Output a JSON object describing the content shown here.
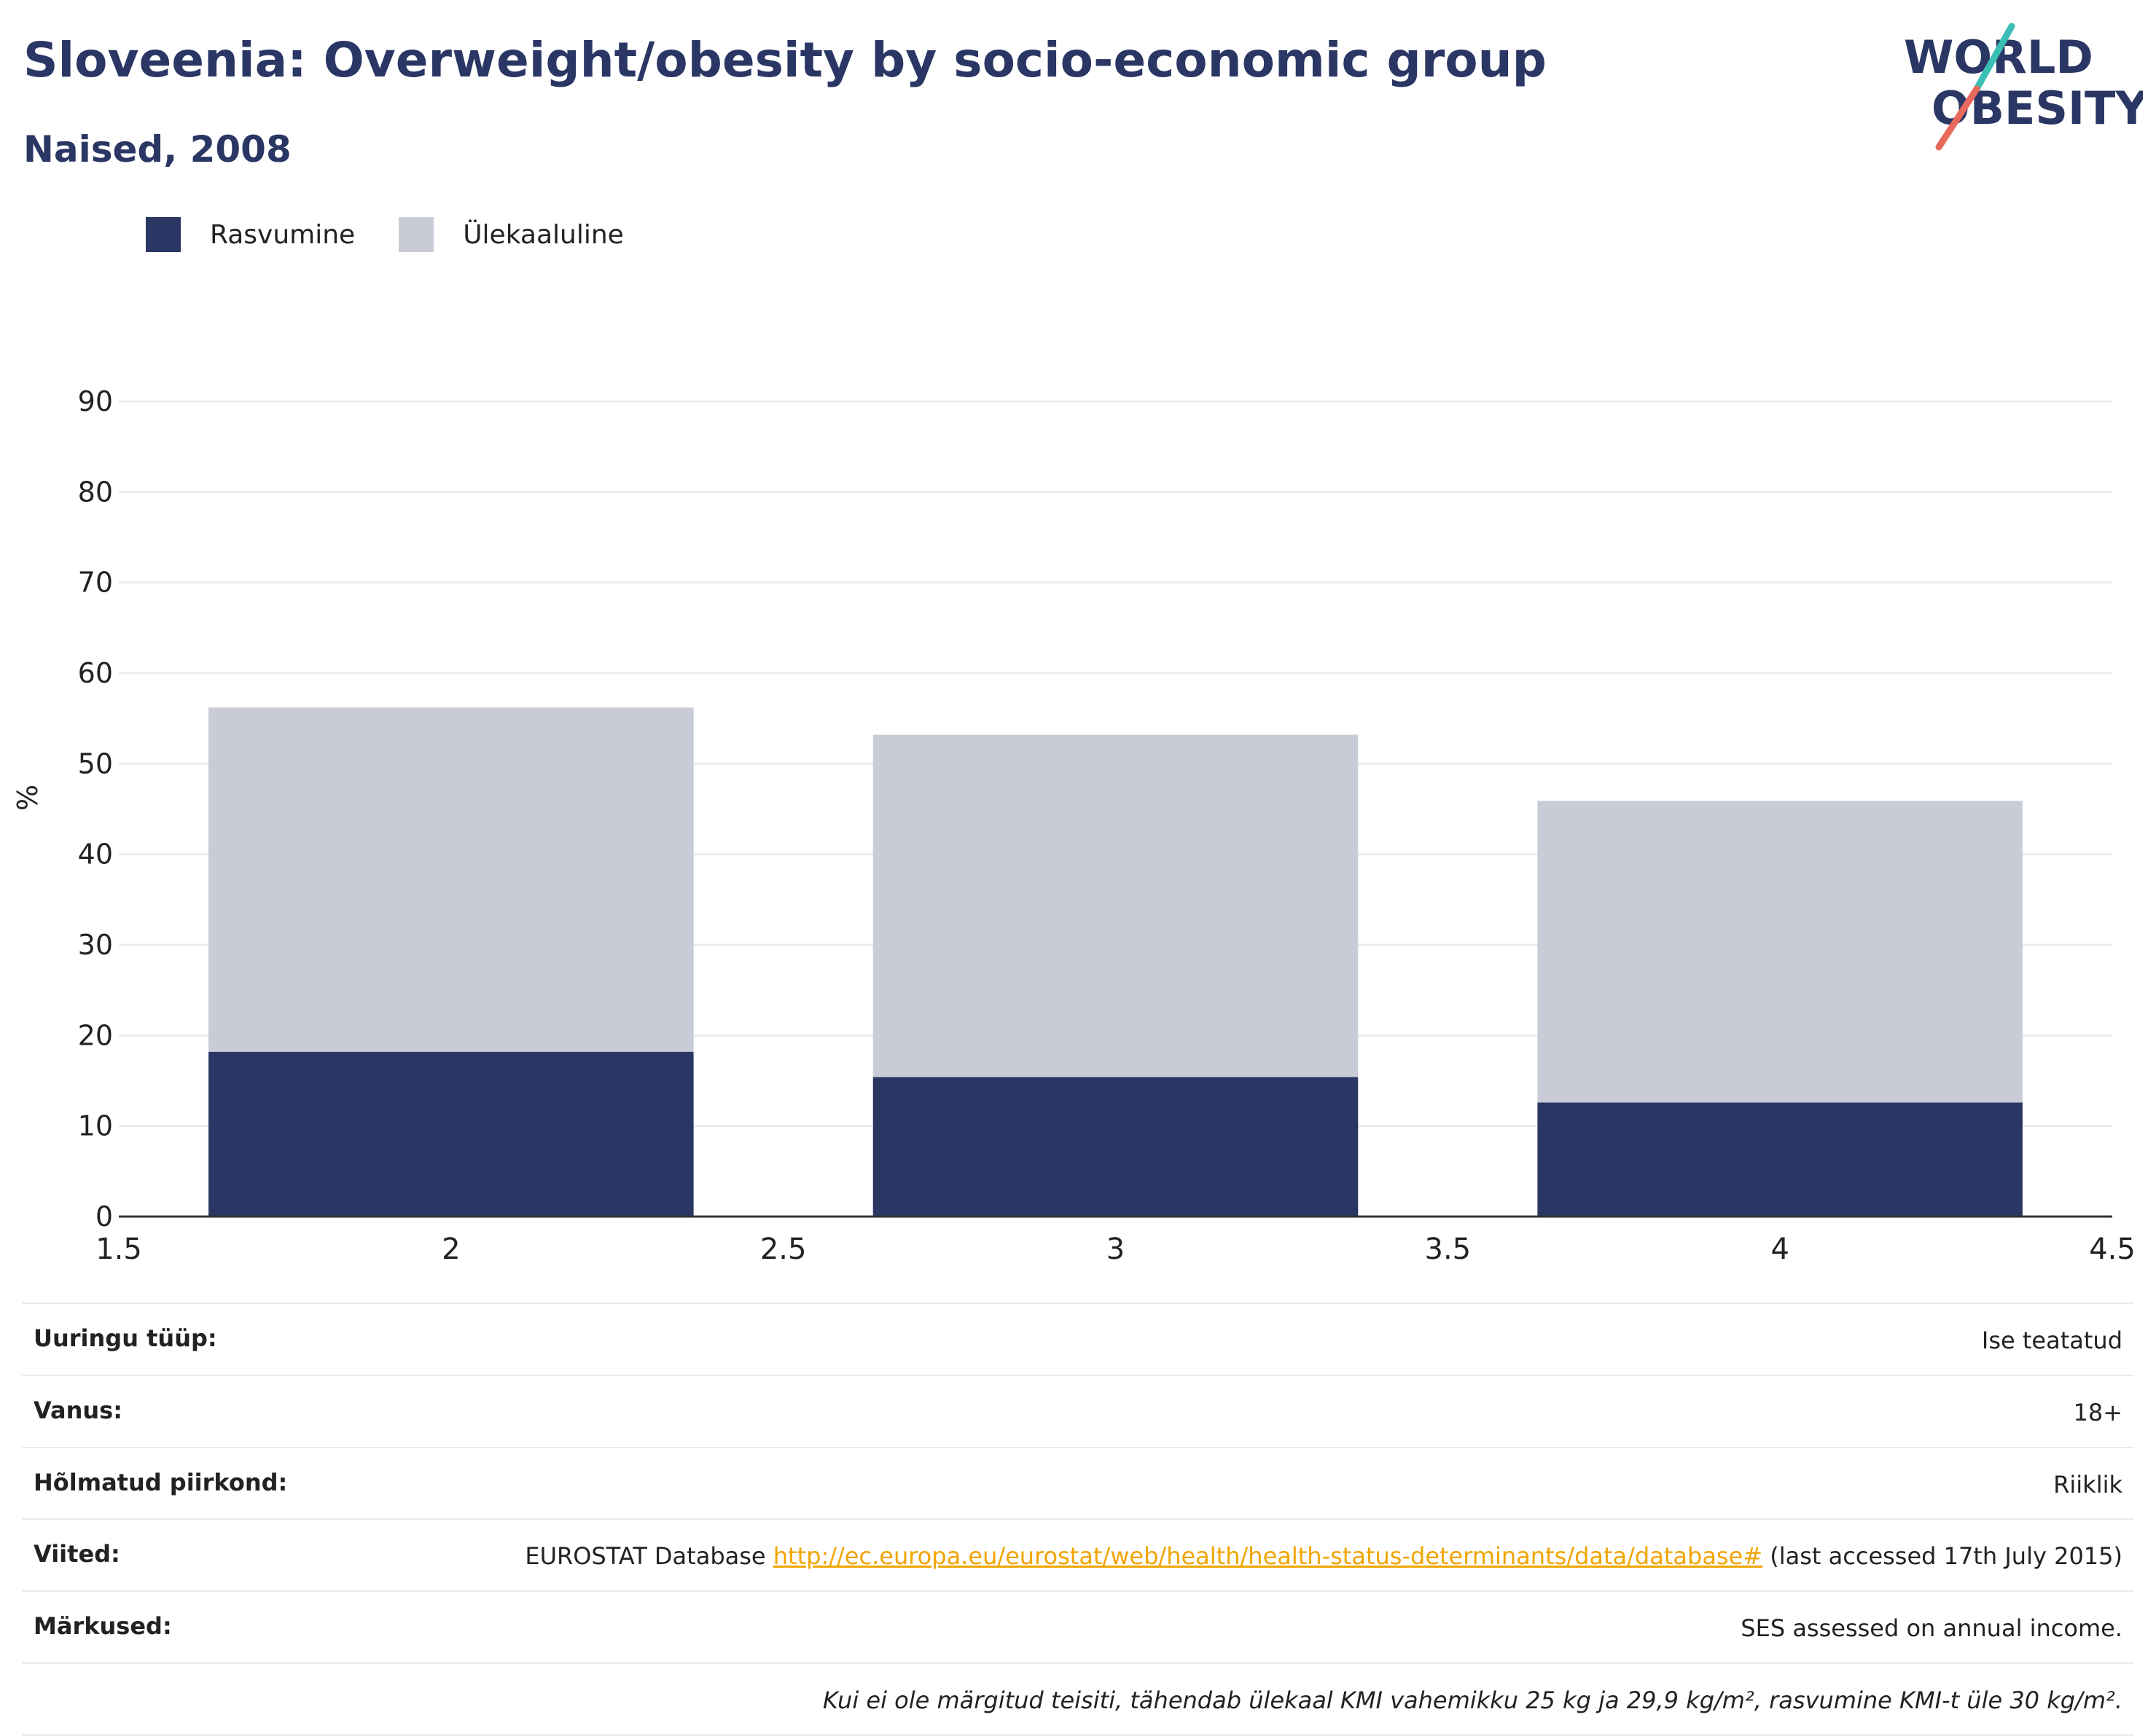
{
  "header": {
    "title": "Sloveenia: Overweight/obesity by socio-economic group",
    "subtitle": "Naised, 2008"
  },
  "logo": {
    "line1": "WORLD",
    "line2": "OBESITY",
    "colors": {
      "text": "#2a3664",
      "slash_top": "#3bbfb5",
      "slash_bottom": "#e86a5c"
    }
  },
  "legend": {
    "items": [
      {
        "label": "Rasvumine",
        "color": "#2a3664"
      },
      {
        "label": "Ülekaaluline",
        "color": "#c9ccd6"
      }
    ]
  },
  "chart_data": {
    "type": "bar",
    "stacked": true,
    "x": [
      2,
      3,
      4
    ],
    "series": [
      {
        "name": "Rasvumine",
        "color": "#2a3664",
        "values": [
          18.2,
          15.4,
          12.6
        ]
      },
      {
        "name": "Ülekaaluline",
        "color": "#c9ccd6",
        "values": [
          38.0,
          37.8,
          33.3
        ]
      }
    ],
    "xlim": [
      1.5,
      4.5
    ],
    "xticks": [
      "1.5",
      "2",
      "2.5",
      "3",
      "3.5",
      "4",
      "4.5"
    ],
    "ylim": [
      0,
      90
    ],
    "yticks": [
      "0",
      "10",
      "20",
      "30",
      "40",
      "50",
      "60",
      "70",
      "80",
      "90"
    ],
    "xlabel": "",
    "ylabel": "%",
    "grid": true,
    "legend_position": "top-left"
  },
  "info": {
    "survey_type": {
      "label": "Uuringu tüüp:",
      "value": "Ise teatatud"
    },
    "age": {
      "label": "Vanus:",
      "value": "18+"
    },
    "region": {
      "label": "Hõlmatud piirkond:",
      "value": "Riiklik"
    },
    "references": {
      "label": "Viited:",
      "prefix": "EUROSTAT Database ",
      "link": "http://ec.europa.eu/eurostat/web/health/health-status-determinants/data/database#",
      "suffix": " (last accessed 17th July 2015)"
    },
    "notes": {
      "label": "Märkused:",
      "value": "SES assessed on annual income."
    },
    "footnote": "Kui ei ole märgitud teisiti, tähendab ülekaal KMI vahemikku 25 kg ja 29,9 kg/m², rasvumine KMI-t üle 30 kg/m²."
  }
}
